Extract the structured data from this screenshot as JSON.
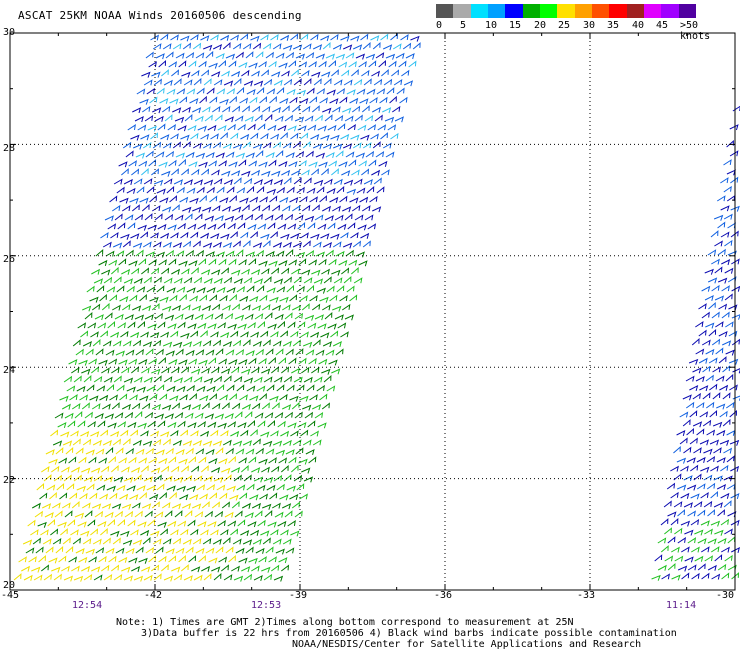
{
  "title": "ASCAT 25KM NOAA Winds 20160506 descending",
  "legend": {
    "colors": [
      "#555555",
      "#aaaaaa",
      "#00e0ff",
      "#00a0ff",
      "#0000ff",
      "#00b000",
      "#00ff00",
      "#ffe000",
      "#ffa000",
      "#ff5000",
      "#ff0000",
      "#a02020",
      "#e000ff",
      "#a000ff",
      "#5000a0"
    ],
    "ticks": [
      "0",
      "5",
      "10",
      "15",
      "20",
      "25",
      "30",
      "35",
      "40",
      "45",
      ">50 knots"
    ]
  },
  "lat_labels": [
    "30",
    "28",
    "26",
    "24",
    "22",
    "20"
  ],
  "lon_labels": [
    "-45",
    "-42",
    "-39",
    "-36",
    "-33",
    "-30"
  ],
  "time_labels": [
    "12:54",
    "12:53",
    "11:14"
  ],
  "notes": {
    "line1": "Note: 1) Times are GMT 2)Times along bottom correspond to measurement at 25N",
    "line2": "3)Data buffer is 22 hrs from 20160506 4) Black wind barbs indicate possible contamination",
    "line3": "NOAA/NESDIS/Center for Satellite Applications and Research"
  },
  "map": {
    "lat_range": [
      20,
      30
    ],
    "lon_range": [
      -45,
      -30
    ],
    "speed_colors": {
      "dark_blue": "#0a0ab0",
      "blue": "#1060e0",
      "cyan": "#30c0f0",
      "dark_green": "#007a00",
      "green": "#20c020",
      "yellow": "#f0e000"
    }
  }
}
